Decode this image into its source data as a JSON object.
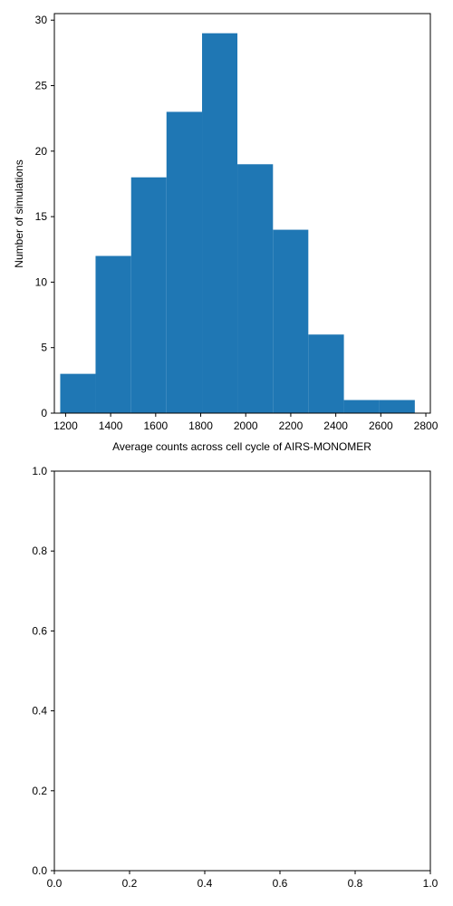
{
  "chart_data": [
    {
      "type": "bar",
      "subtype": "histogram",
      "title": "",
      "xlabel": "Average counts across cell cycle of AIRS-MONOMER",
      "ylabel": "Number of simulations",
      "xlim": [
        1150,
        2820
      ],
      "ylim": [
        0,
        30.5
      ],
      "bin_edges": [
        1176,
        1333,
        1491,
        1648,
        1806,
        1963,
        2121,
        2278,
        2436,
        2593,
        2751
      ],
      "values": [
        3,
        12,
        18,
        23,
        29,
        19,
        14,
        6,
        1,
        1
      ],
      "xticks": [
        "1200",
        "1400",
        "1600",
        "1800",
        "2000",
        "2200",
        "2400",
        "2600",
        "2800"
      ],
      "yticks": [
        "0",
        "5",
        "10",
        "15",
        "20",
        "25",
        "30"
      ],
      "bar_color": "#1f77b4",
      "grid": false,
      "legend": "none"
    },
    {
      "type": "empty",
      "title": "",
      "xlabel": "",
      "ylabel": "",
      "xlim": [
        0,
        1
      ],
      "ylim": [
        0,
        1
      ],
      "xticks": [
        "0.0",
        "0.2",
        "0.4",
        "0.6",
        "0.8",
        "1.0"
      ],
      "yticks": [
        "0.0",
        "0.2",
        "0.4",
        "0.6",
        "0.8",
        "1.0"
      ],
      "grid": false,
      "legend": "none"
    }
  ]
}
